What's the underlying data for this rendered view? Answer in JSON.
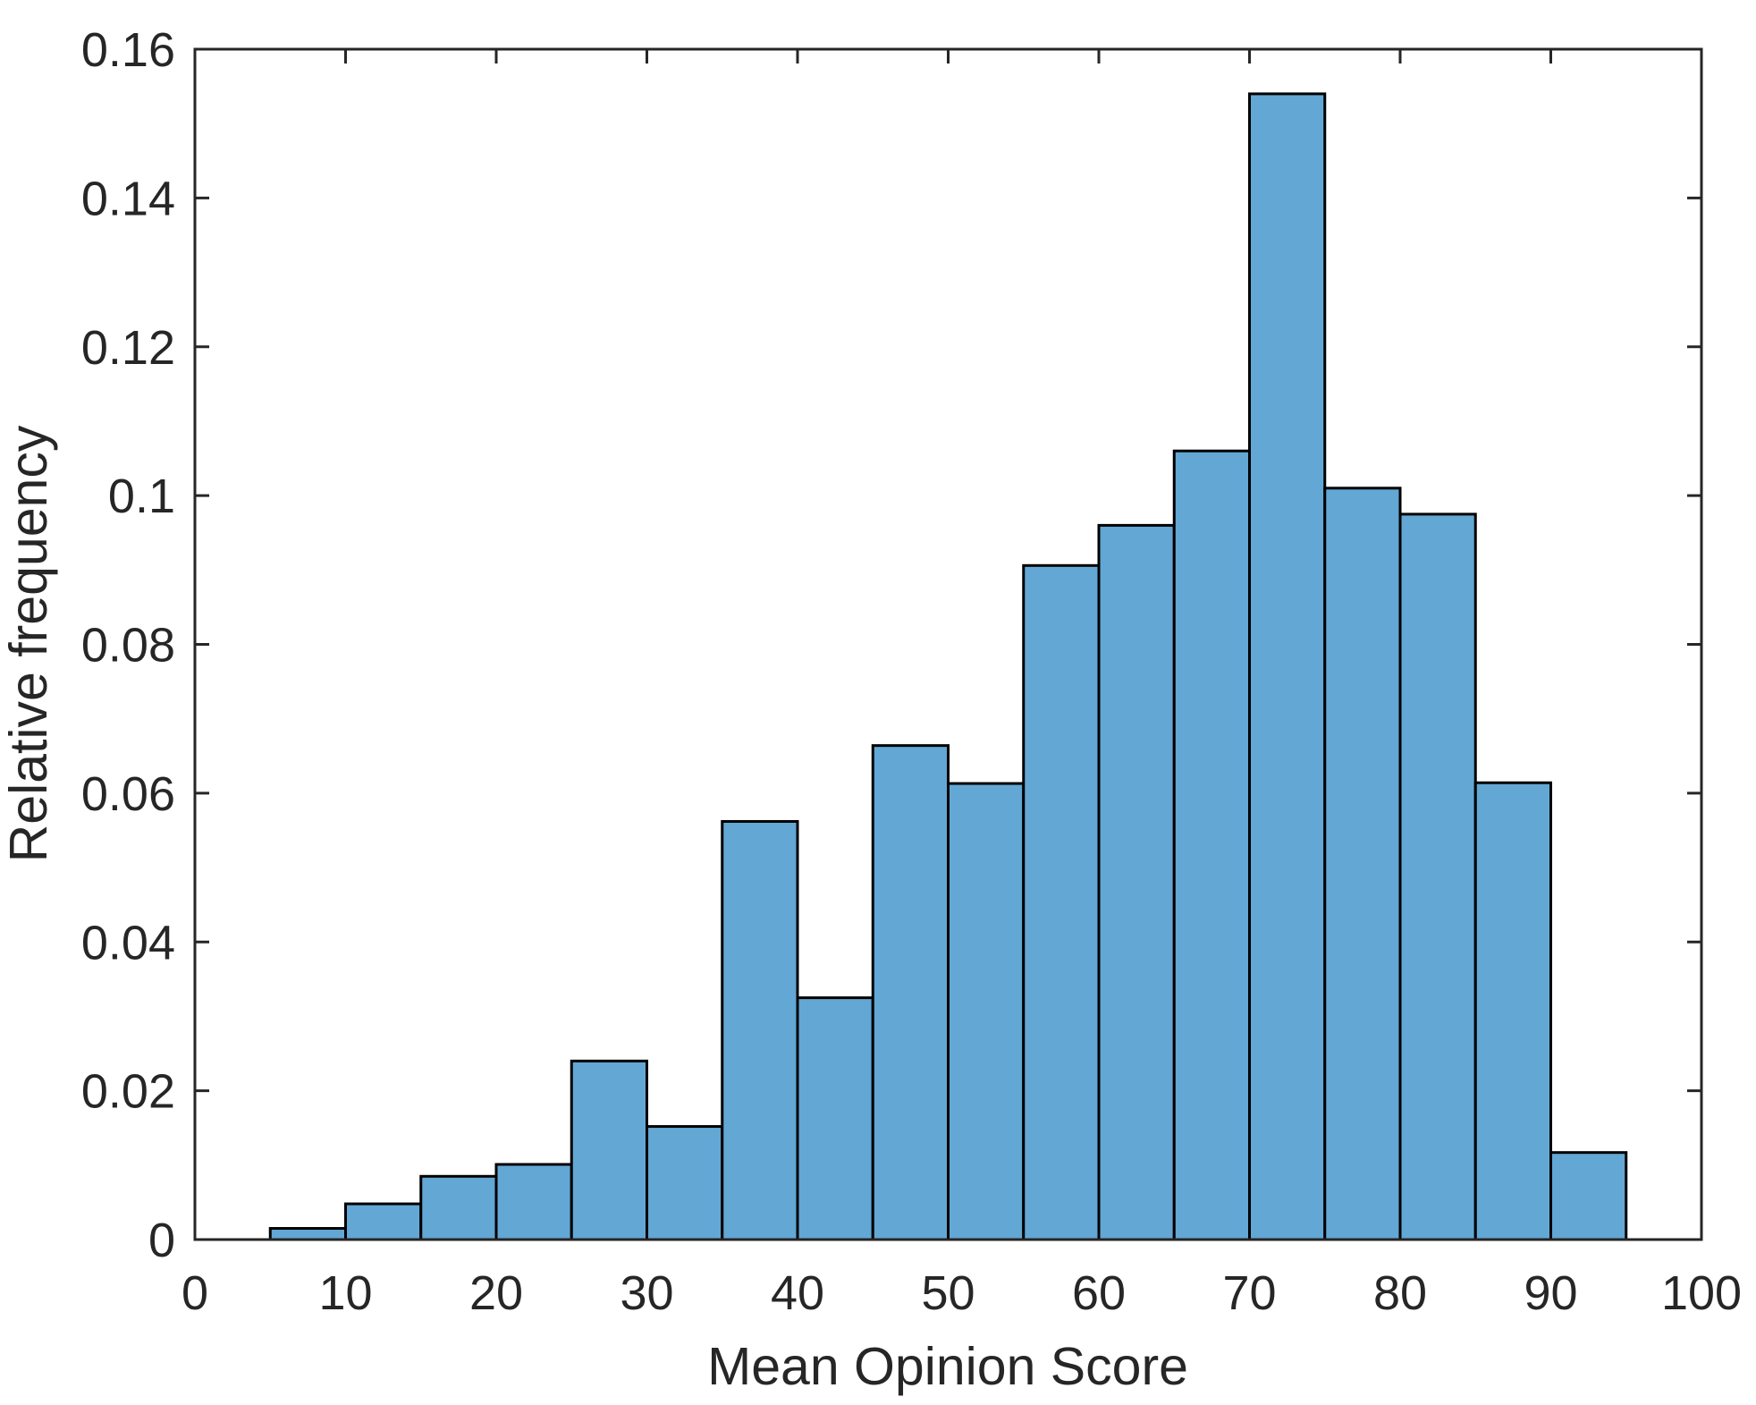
{
  "chart_data": {
    "type": "bar",
    "subtype": "histogram",
    "title": "",
    "xlabel": "Mean Opinion Score",
    "ylabel": "Relative frequency",
    "xlim": [
      0,
      100
    ],
    "ylim": [
      0,
      0.16
    ],
    "grid": false,
    "legend_position": "none",
    "bin_width": 5,
    "bins": [
      {
        "start": 5,
        "end": 10,
        "value": 0.0015
      },
      {
        "start": 10,
        "end": 15,
        "value": 0.0048
      },
      {
        "start": 15,
        "end": 20,
        "value": 0.0085
      },
      {
        "start": 20,
        "end": 25,
        "value": 0.0101
      },
      {
        "start": 25,
        "end": 30,
        "value": 0.024
      },
      {
        "start": 30,
        "end": 35,
        "value": 0.0152
      },
      {
        "start": 35,
        "end": 40,
        "value": 0.0562
      },
      {
        "start": 40,
        "end": 45,
        "value": 0.0325
      },
      {
        "start": 45,
        "end": 50,
        "value": 0.0664
      },
      {
        "start": 50,
        "end": 55,
        "value": 0.0613
      },
      {
        "start": 55,
        "end": 60,
        "value": 0.0906
      },
      {
        "start": 60,
        "end": 65,
        "value": 0.096
      },
      {
        "start": 65,
        "end": 70,
        "value": 0.106
      },
      {
        "start": 70,
        "end": 75,
        "value": 0.154
      },
      {
        "start": 75,
        "end": 80,
        "value": 0.101
      },
      {
        "start": 80,
        "end": 85,
        "value": 0.0975
      },
      {
        "start": 85,
        "end": 90,
        "value": 0.0614
      },
      {
        "start": 90,
        "end": 95,
        "value": 0.0117
      }
    ],
    "x_tick_values": [
      0,
      10,
      20,
      30,
      40,
      50,
      60,
      70,
      80,
      90,
      100
    ],
    "x_tick_labels": [
      "0",
      "10",
      "20",
      "30",
      "40",
      "50",
      "60",
      "70",
      "80",
      "90",
      "100"
    ],
    "y_tick_values": [
      0,
      0.02,
      0.04,
      0.06,
      0.08,
      0.1,
      0.12,
      0.14,
      0.16
    ],
    "y_tick_labels": [
      "0",
      "0.02",
      "0.04",
      "0.06",
      "0.08",
      "0.1",
      "0.12",
      "0.14",
      "0.16"
    ],
    "colors": {
      "bar_fill": "#63A7D4",
      "bar_edge": "#000000",
      "axis": "#262626",
      "tick_text": "#262626",
      "background": "#ffffff"
    }
  }
}
